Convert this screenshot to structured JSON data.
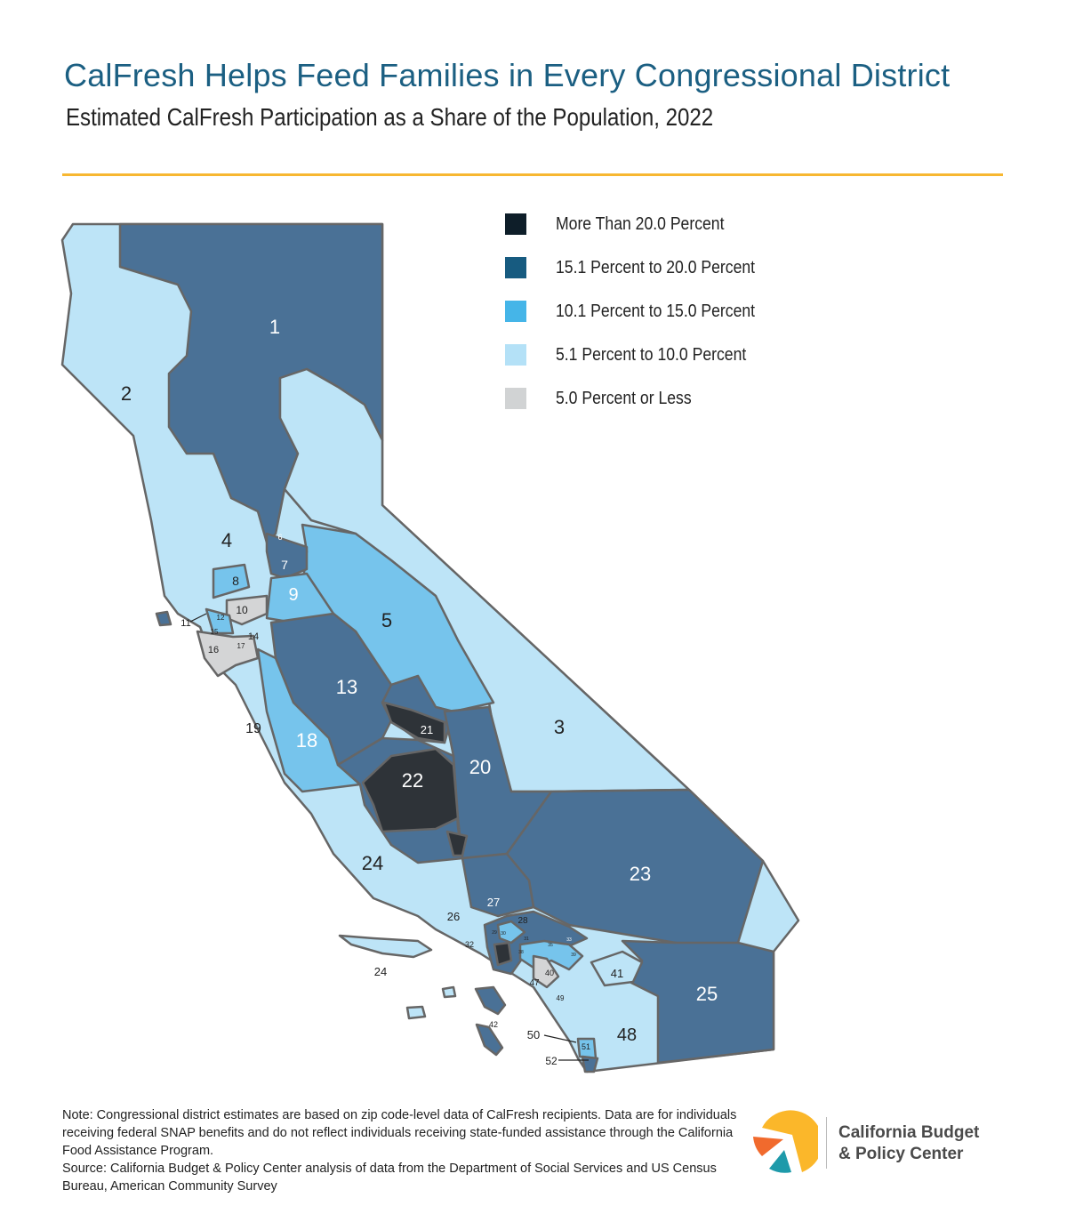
{
  "header": {
    "title": "CalFresh Helps Feed Families in Every Congressional District",
    "subtitle": "Estimated CalFresh Participation as a Share of the Population, 2022"
  },
  "legend": [
    {
      "label": "More Than 20.0 Percent",
      "color": "#0e1e29",
      "map_color": "#2e3338"
    },
    {
      "label": "15.1 Percent to 20.0 Percent",
      "color": "#175b80",
      "map_color": "#4a7196"
    },
    {
      "label": "10.1 Percent to 15.0 Percent",
      "color": "#45b5e8",
      "map_color": "#76c4ec"
    },
    {
      "label": "5.1 Percent to 10.0 Percent",
      "color": "#b4e1f7",
      "map_color": "#bde4f7"
    },
    {
      "label": "5.0 Percent or Less",
      "color": "#d1d3d4",
      "map_color": "#d4d5d6"
    }
  ],
  "map": {
    "district_labels": {
      "d1": "1",
      "d2": "2",
      "d3": "3",
      "d4": "4",
      "d5": "5",
      "d6": "6",
      "d7": "7",
      "d8": "8",
      "d9": "9",
      "d10": "10",
      "d11": "11",
      "d12": "12",
      "d13": "13",
      "d14": "14",
      "d15": "15",
      "d16": "16",
      "d17": "17",
      "d18": "18",
      "d19": "19",
      "d20": "20",
      "d21": "21",
      "d22": "22",
      "d23": "23",
      "d24": "24",
      "d24b": "24",
      "d25": "25",
      "d26": "26",
      "d27": "27",
      "d28": "28",
      "d29": "29",
      "d30": "30",
      "d31": "31",
      "d32": "32",
      "d33": "33",
      "d35": "35",
      "d38": "38",
      "d39": "39",
      "d40": "40",
      "d41": "41",
      "d42": "42",
      "d47": "47",
      "d48": "48",
      "d49": "49",
      "d50": "50",
      "d51": "51",
      "d52": "52"
    }
  },
  "footer": {
    "note": "Note: Congressional district estimates are based on zip code-level data of CalFresh recipients. Data are for individuals receiving federal SNAP benefits and do not reflect individuals receiving state-funded assistance through the California Food Assistance Program.",
    "source": "Source: California Budget & Policy Center analysis of data from the Department of Social Services and US Census Bureau, American Community Survey",
    "logo_line1": "California Budget",
    "logo_line2": "& Policy Center",
    "logo_colors": {
      "yellow": "#fbb72a",
      "orange": "#f16a2d",
      "teal": "#1e9aaa"
    }
  }
}
